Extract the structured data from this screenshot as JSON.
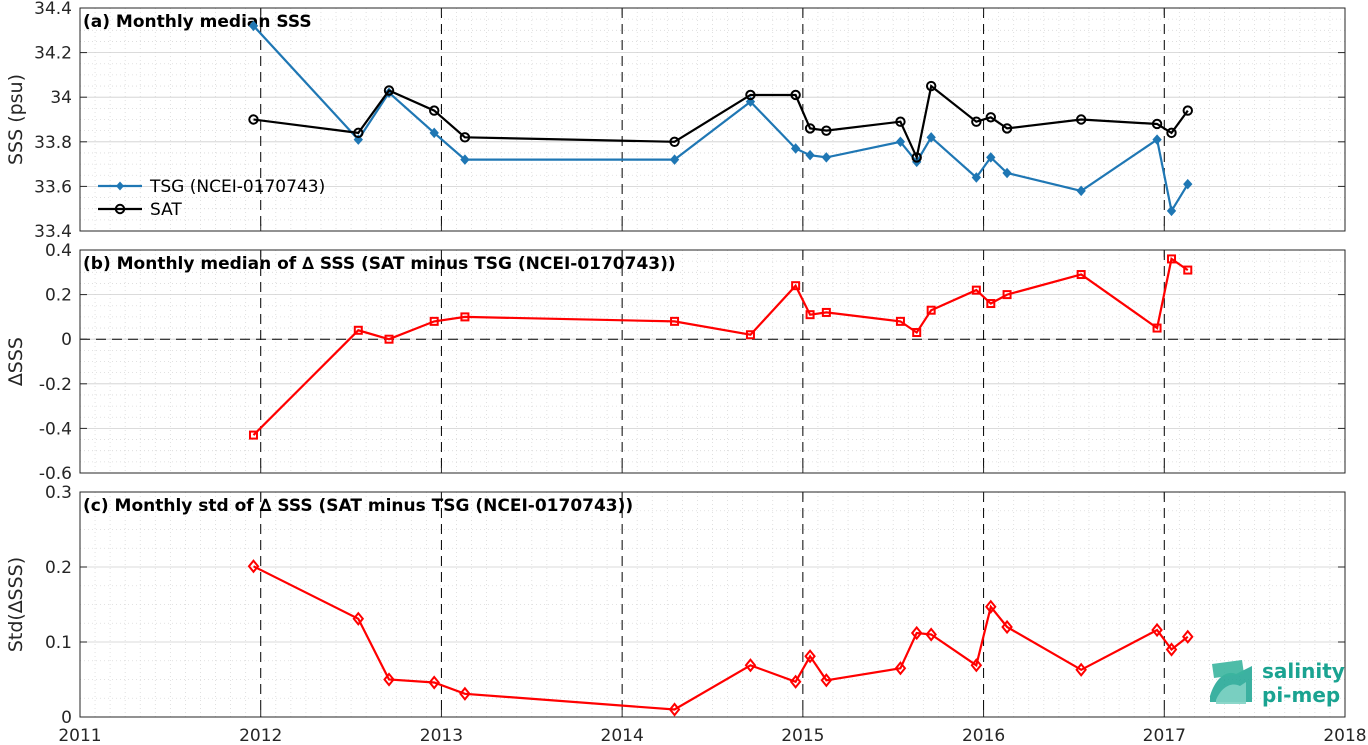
{
  "colors": {
    "tsg": "#1f77b4",
    "sat": "#000000",
    "delta": "#ff0000",
    "logo": "#1aa391"
  },
  "xaxis": {
    "range": [
      2011,
      2018
    ],
    "ticks": [
      "2011",
      "2012",
      "2013",
      "2014",
      "2015",
      "2016",
      "2017",
      "2018"
    ],
    "year_lines": [
      2012,
      2013,
      2014,
      2015,
      2016,
      2017
    ]
  },
  "logo": {
    "line1": "salinity",
    "line2": "pi-mep"
  },
  "chart_data": [
    {
      "type": "line",
      "title": "(a) Monthly median SSS",
      "ylabel": "SSS (psu)",
      "ylim": [
        33.4,
        34.4
      ],
      "yticks": [
        33.4,
        33.6,
        33.8,
        34,
        34.2,
        34.4
      ],
      "ytick_labels": [
        "33.4",
        "33.6",
        "33.8",
        "34",
        "34.2",
        "34.4"
      ],
      "grid": true,
      "legend": "left",
      "series": [
        {
          "name": "TSG (NCEI-0170743)",
          "marker": "diamond",
          "color": "#1f77b4",
          "x": [
            2011.96,
            2012.54,
            2012.71,
            2012.96,
            2013.13,
            2014.29,
            2014.71,
            2014.96,
            2015.04,
            2015.13,
            2015.54,
            2015.63,
            2015.71,
            2015.96,
            2016.04,
            2016.13,
            2016.54,
            2016.96,
            2017.04,
            2017.13
          ],
          "y": [
            34.32,
            33.81,
            34.02,
            33.84,
            33.72,
            33.72,
            33.98,
            33.77,
            33.74,
            33.73,
            33.8,
            33.71,
            33.82,
            33.64,
            33.73,
            33.66,
            33.58,
            33.81,
            33.49,
            33.61
          ]
        },
        {
          "name": "SAT",
          "marker": "circle",
          "color": "#000000",
          "x": [
            2011.96,
            2012.54,
            2012.71,
            2012.96,
            2013.13,
            2014.29,
            2014.71,
            2014.96,
            2015.04,
            2015.13,
            2015.54,
            2015.63,
            2015.71,
            2015.96,
            2016.04,
            2016.13,
            2016.54,
            2016.96,
            2017.04,
            2017.13
          ],
          "y": [
            33.9,
            33.84,
            34.03,
            33.94,
            33.82,
            33.8,
            34.01,
            34.01,
            33.86,
            33.85,
            33.89,
            33.73,
            34.05,
            33.89,
            33.91,
            33.86,
            33.9,
            33.88,
            33.84,
            33.94
          ]
        }
      ]
    },
    {
      "type": "line",
      "title": "(b) Monthly median of ∆ SSS (SAT minus TSG (NCEI-0170743))",
      "ylabel": "∆SSS",
      "ylim": [
        -0.6,
        0.4
      ],
      "yticks": [
        -0.6,
        -0.4,
        -0.2,
        0,
        0.2,
        0.4
      ],
      "ytick_labels": [
        "-0.6",
        "-0.4",
        "-0.2",
        "0",
        "0.2",
        "0.4"
      ],
      "zero_line": true,
      "grid": true,
      "series": [
        {
          "marker": "square",
          "color": "#ff0000",
          "x": [
            2011.96,
            2012.54,
            2012.71,
            2012.96,
            2013.13,
            2014.29,
            2014.71,
            2014.96,
            2015.04,
            2015.13,
            2015.54,
            2015.63,
            2015.71,
            2015.96,
            2016.04,
            2016.13,
            2016.54,
            2016.96,
            2017.04,
            2017.13
          ],
          "y": [
            -0.43,
            0.04,
            0.0,
            0.08,
            0.1,
            0.08,
            0.02,
            0.24,
            0.11,
            0.12,
            0.08,
            0.03,
            0.13,
            0.22,
            0.16,
            0.2,
            0.29,
            0.05,
            0.36,
            0.31
          ]
        }
      ]
    },
    {
      "type": "line",
      "title": "(c) Monthly std of ∆ SSS (SAT minus TSG (NCEI-0170743))",
      "ylabel": "Std(∆SSS)",
      "ylim": [
        0,
        0.3
      ],
      "yticks": [
        0,
        0.1,
        0.2,
        0.3
      ],
      "ytick_labels": [
        "0",
        "0.1",
        "0.2",
        "0.3"
      ],
      "grid": true,
      "series": [
        {
          "marker": "diamond-open",
          "color": "#ff0000",
          "x": [
            2011.96,
            2012.54,
            2012.71,
            2012.96,
            2013.13,
            2014.29,
            2014.71,
            2014.96,
            2015.04,
            2015.13,
            2015.54,
            2015.63,
            2015.71,
            2015.96,
            2016.04,
            2016.13,
            2016.54,
            2016.96,
            2017.04,
            2017.13
          ],
          "y": [
            0.201,
            0.131,
            0.05,
            0.046,
            0.031,
            0.01,
            0.069,
            0.047,
            0.081,
            0.049,
            0.065,
            0.112,
            0.11,
            0.069,
            0.147,
            0.12,
            0.063,
            0.116,
            0.09,
            0.107
          ]
        }
      ]
    }
  ]
}
